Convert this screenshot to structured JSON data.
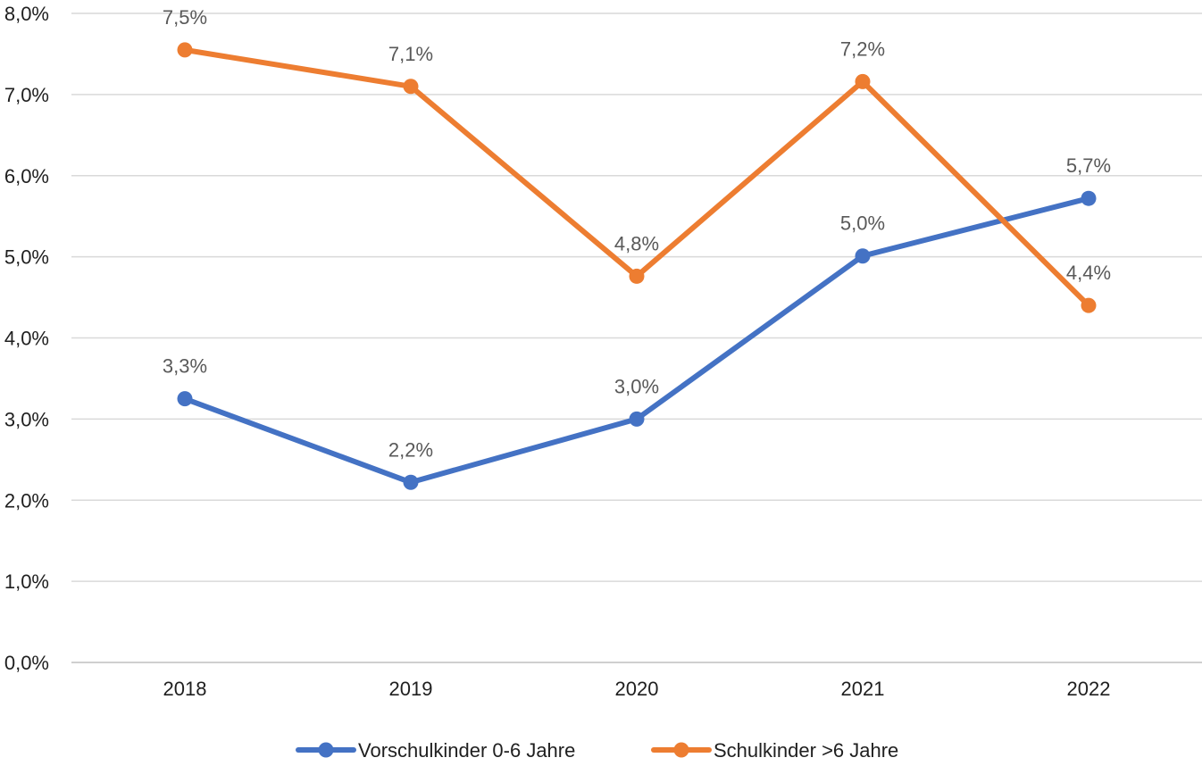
{
  "chart_data": {
    "type": "line",
    "title": "",
    "xlabel": "",
    "ylabel": "",
    "categories": [
      "2018",
      "2019",
      "2020",
      "2021",
      "2022"
    ],
    "ylim": [
      0,
      8
    ],
    "yticks": [
      0,
      1,
      2,
      3,
      4,
      5,
      6,
      7,
      8
    ],
    "ytick_labels": [
      "0,0%",
      "1,0%",
      "2,0%",
      "3,0%",
      "4,0%",
      "5,0%",
      "6,0%",
      "7,0%",
      "8,0%"
    ],
    "grid": true,
    "legend_position": "bottom",
    "series": [
      {
        "name": "Vorschulkinder 0-6 Jahre",
        "color": "#4472C4",
        "values": [
          3.25,
          2.22,
          3.0,
          5.01,
          5.72
        ],
        "labels": [
          "3,3%",
          "2,2%",
          "3,0%",
          "5,0%",
          "5,7%"
        ]
      },
      {
        "name": "Schulkinder >6 Jahre",
        "color": "#ED7D31",
        "values": [
          7.55,
          7.1,
          4.76,
          7.16,
          4.4
        ],
        "labels": [
          "7,5%",
          "7,1%",
          "4,8%",
          "7,2%",
          "4,4%"
        ]
      }
    ]
  }
}
